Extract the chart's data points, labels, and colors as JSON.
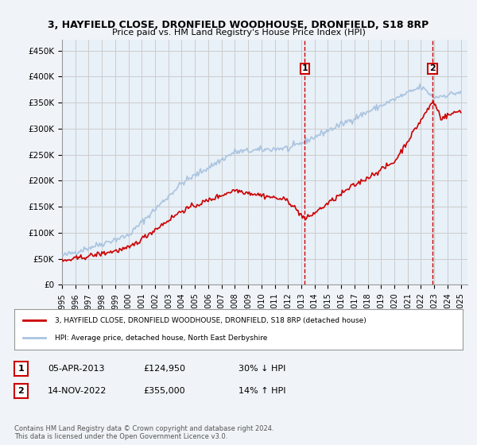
{
  "title_line1": "3, HAYFIELD CLOSE, DRONFIELD WOODHOUSE, DRONFIELD, S18 8RP",
  "title_line2": "Price paid vs. HM Land Registry's House Price Index (HPI)",
  "ylabel_ticks": [
    "£0",
    "£50K",
    "£100K",
    "£150K",
    "£200K",
    "£250K",
    "£300K",
    "£350K",
    "£400K",
    "£450K"
  ],
  "ytick_values": [
    0,
    50000,
    100000,
    150000,
    200000,
    250000,
    300000,
    350000,
    400000,
    450000
  ],
  "ylim": [
    0,
    470000
  ],
  "xlim_start": 1995.0,
  "xlim_end": 2025.5,
  "hpi_color": "#aac4e0",
  "price_color": "#cc0000",
  "bg_color": "#e8f0f8",
  "plot_bg": "#ffffff",
  "grid_color": "#cccccc",
  "sale1_x": 2013.27,
  "sale1_y": 124950,
  "sale2_x": 2022.87,
  "sale2_y": 355000,
  "sale1_label": "1",
  "sale2_label": "2",
  "legend_price_label": "3, HAYFIELD CLOSE, DRONFIELD WOODHOUSE, DRONFIELD, S18 8RP (detached house)",
  "legend_hpi_label": "HPI: Average price, detached house, North East Derbyshire",
  "table_row1": [
    "1",
    "05-APR-2013",
    "£124,950",
    "30% ↓ HPI"
  ],
  "table_row2": [
    "2",
    "14-NOV-2022",
    "£355,000",
    "14% ↑ HPI"
  ],
  "footnote": "Contains HM Land Registry data © Crown copyright and database right 2024.\nThis data is licensed under the Open Government Licence v3.0.",
  "dashed_line1_x": 2013.27,
  "dashed_line2_x": 2022.87
}
